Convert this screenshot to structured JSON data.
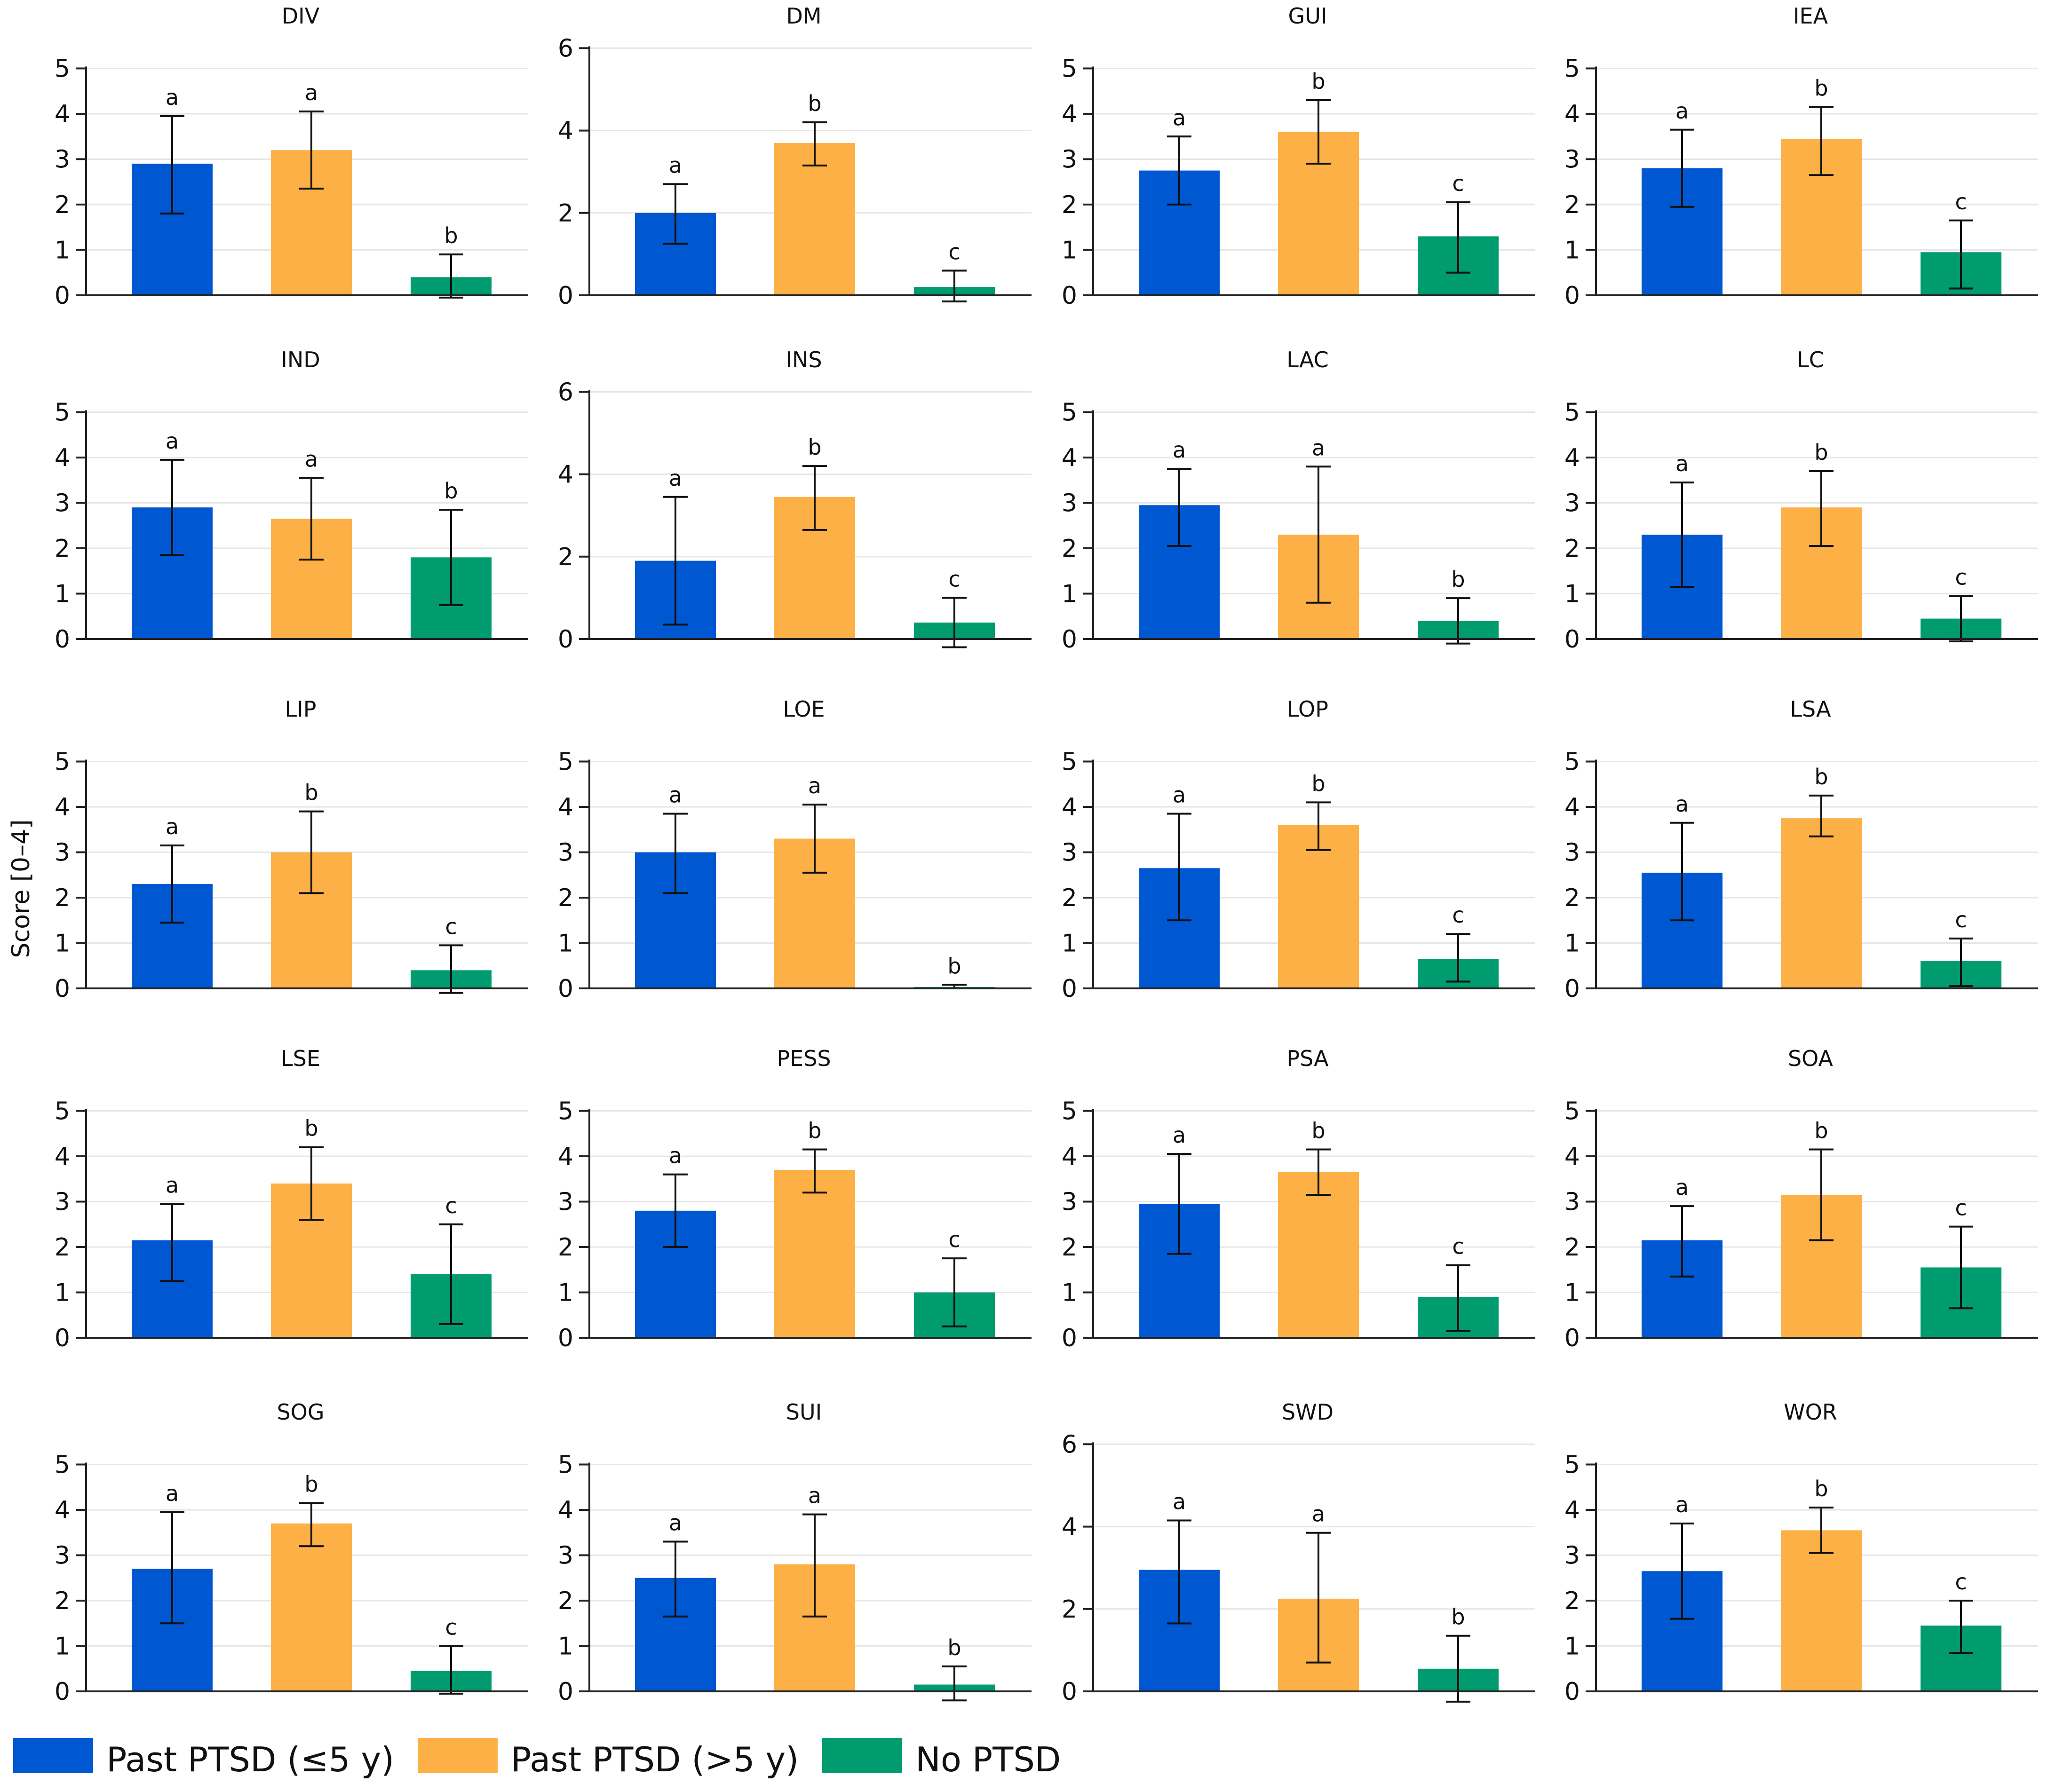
{
  "chart_data": {
    "type": "bar",
    "ylabel": "Score [0–4]",
    "groups": [
      "Past PTSD (≤5 y)",
      "Past PTSD (>5 y)",
      "No PTSD"
    ],
    "colors": [
      "#0057d2",
      "#fdb045",
      "#009b6e"
    ],
    "panels": [
      {
        "title": "DIV",
        "ymax": 5,
        "values": [
          2.9,
          3.2,
          0.4
        ],
        "errors": [
          [
            1.8,
            3.95
          ],
          [
            2.35,
            4.05
          ],
          [
            -0.05,
            0.9
          ]
        ],
        "letters": [
          "a",
          "a",
          "b"
        ]
      },
      {
        "title": "DM",
        "ymax": 6,
        "values": [
          2.0,
          3.7,
          0.2
        ],
        "errors": [
          [
            1.25,
            2.7
          ],
          [
            3.15,
            4.2
          ],
          [
            -0.15,
            0.6
          ]
        ],
        "letters": [
          "a",
          "b",
          "c"
        ]
      },
      {
        "title": "GUI",
        "ymax": 5,
        "values": [
          2.75,
          3.6,
          1.3
        ],
        "errors": [
          [
            2.0,
            3.5
          ],
          [
            2.9,
            4.3
          ],
          [
            0.5,
            2.05
          ]
        ],
        "letters": [
          "a",
          "b",
          "c"
        ]
      },
      {
        "title": "IEA",
        "ymax": 5,
        "values": [
          2.8,
          3.45,
          0.95
        ],
        "errors": [
          [
            1.95,
            3.65
          ],
          [
            2.65,
            4.15
          ],
          [
            0.15,
            1.65
          ]
        ],
        "letters": [
          "a",
          "b",
          "c"
        ]
      },
      {
        "title": "IND",
        "ymax": 5,
        "values": [
          2.9,
          2.65,
          1.8
        ],
        "errors": [
          [
            1.85,
            3.95
          ],
          [
            1.75,
            3.55
          ],
          [
            0.75,
            2.85
          ]
        ],
        "letters": [
          "a",
          "a",
          "b"
        ]
      },
      {
        "title": "INS",
        "ymax": 6,
        "values": [
          1.9,
          3.45,
          0.4
        ],
        "errors": [
          [
            0.35,
            3.45
          ],
          [
            2.65,
            4.2
          ],
          [
            -0.2,
            1.0
          ]
        ],
        "letters": [
          "a",
          "b",
          "c"
        ]
      },
      {
        "title": "LAC",
        "ymax": 5,
        "values": [
          2.95,
          2.3,
          0.4
        ],
        "errors": [
          [
            2.05,
            3.75
          ],
          [
            0.8,
            3.8
          ],
          [
            -0.1,
            0.9
          ]
        ],
        "letters": [
          "a",
          "a",
          "b"
        ]
      },
      {
        "title": "LC",
        "ymax": 5,
        "values": [
          2.3,
          2.9,
          0.45
        ],
        "errors": [
          [
            1.15,
            3.45
          ],
          [
            2.05,
            3.7
          ],
          [
            -0.05,
            0.95
          ]
        ],
        "letters": [
          "a",
          "b",
          "c"
        ]
      },
      {
        "title": "LIP",
        "ymax": 5,
        "values": [
          2.3,
          3.0,
          0.4
        ],
        "errors": [
          [
            1.45,
            3.15
          ],
          [
            2.1,
            3.9
          ],
          [
            -0.1,
            0.95
          ]
        ],
        "letters": [
          "a",
          "b",
          "c"
        ]
      },
      {
        "title": "LOE",
        "ymax": 5,
        "values": [
          3.0,
          3.3,
          0.03
        ],
        "errors": [
          [
            2.1,
            3.85
          ],
          [
            2.55,
            4.05
          ],
          [
            0.0,
            0.08
          ]
        ],
        "letters": [
          "a",
          "a",
          "b"
        ]
      },
      {
        "title": "LOP",
        "ymax": 5,
        "values": [
          2.65,
          3.6,
          0.65
        ],
        "errors": [
          [
            1.5,
            3.85
          ],
          [
            3.05,
            4.1
          ],
          [
            0.15,
            1.2
          ]
        ],
        "letters": [
          "a",
          "b",
          "c"
        ]
      },
      {
        "title": "LSA",
        "ymax": 5,
        "values": [
          2.55,
          3.75,
          0.6
        ],
        "errors": [
          [
            1.5,
            3.65
          ],
          [
            3.35,
            4.25
          ],
          [
            0.05,
            1.1
          ]
        ],
        "letters": [
          "a",
          "b",
          "c"
        ]
      },
      {
        "title": "LSE",
        "ymax": 5,
        "values": [
          2.15,
          3.4,
          1.4
        ],
        "errors": [
          [
            1.25,
            2.95
          ],
          [
            2.6,
            4.2
          ],
          [
            0.3,
            2.5
          ]
        ],
        "letters": [
          "a",
          "b",
          "c"
        ]
      },
      {
        "title": "PESS",
        "ymax": 5,
        "values": [
          2.8,
          3.7,
          1.0
        ],
        "errors": [
          [
            2.0,
            3.6
          ],
          [
            3.2,
            4.15
          ],
          [
            0.25,
            1.75
          ]
        ],
        "letters": [
          "a",
          "b",
          "c"
        ]
      },
      {
        "title": "PSA",
        "ymax": 5,
        "values": [
          2.95,
          3.65,
          0.9
        ],
        "errors": [
          [
            1.85,
            4.05
          ],
          [
            3.15,
            4.15
          ],
          [
            0.15,
            1.6
          ]
        ],
        "letters": [
          "a",
          "b",
          "c"
        ]
      },
      {
        "title": "SOA",
        "ymax": 5,
        "values": [
          2.15,
          3.15,
          1.55
        ],
        "errors": [
          [
            1.35,
            2.9
          ],
          [
            2.15,
            4.15
          ],
          [
            0.65,
            2.45
          ]
        ],
        "letters": [
          "a",
          "b",
          "c"
        ]
      },
      {
        "title": "SOG",
        "ymax": 5,
        "values": [
          2.7,
          3.7,
          0.45
        ],
        "errors": [
          [
            1.5,
            3.95
          ],
          [
            3.2,
            4.15
          ],
          [
            -0.05,
            1.0
          ]
        ],
        "letters": [
          "a",
          "b",
          "c"
        ]
      },
      {
        "title": "SUI",
        "ymax": 5,
        "values": [
          2.5,
          2.8,
          0.15
        ],
        "errors": [
          [
            1.65,
            3.3
          ],
          [
            1.65,
            3.9
          ],
          [
            -0.2,
            0.55
          ]
        ],
        "letters": [
          "a",
          "a",
          "b"
        ]
      },
      {
        "title": "SWD",
        "ymax": 6,
        "values": [
          2.95,
          2.25,
          0.55
        ],
        "errors": [
          [
            1.65,
            4.15
          ],
          [
            0.7,
            3.85
          ],
          [
            -0.25,
            1.35
          ]
        ],
        "letters": [
          "a",
          "a",
          "b"
        ]
      },
      {
        "title": "WOR",
        "ymax": 5,
        "values": [
          2.65,
          3.55,
          1.45
        ],
        "errors": [
          [
            1.6,
            3.7
          ],
          [
            3.05,
            4.05
          ],
          [
            0.85,
            2.0
          ]
        ],
        "letters": [
          "a",
          "b",
          "c"
        ]
      }
    ]
  }
}
